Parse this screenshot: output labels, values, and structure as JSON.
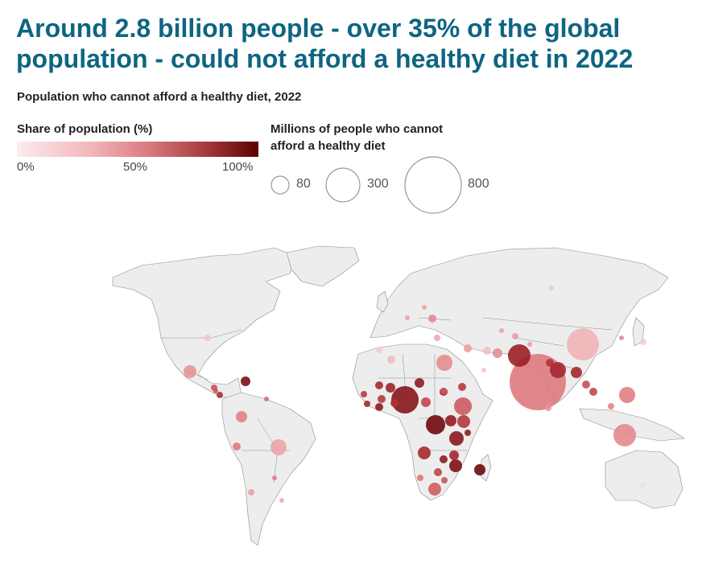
{
  "title": "Around 2.8 billion people - over 35% of the global population - could not afford a healthy diet in 2022",
  "subtitle": "Population who cannot afford a healthy diet, 2022",
  "color_legend": {
    "title": "Share of population (%)",
    "ticks": [
      "0%",
      "50%",
      "100%"
    ],
    "colors": {
      "low": "#fbe6e8",
      "mid": "#de7a7f",
      "high": "#5e0000"
    }
  },
  "size_legend": {
    "title_line1": "Millions of people who cannot",
    "title_line2": "afford a healthy diet",
    "items": [
      {
        "value": 80,
        "label": "80"
      },
      {
        "value": 300,
        "label": "300"
      },
      {
        "value": 800,
        "label": "800"
      }
    ]
  },
  "colors": {
    "title": "#0e6581",
    "land": "#ececec",
    "border": "#8a8a8a"
  }
}
